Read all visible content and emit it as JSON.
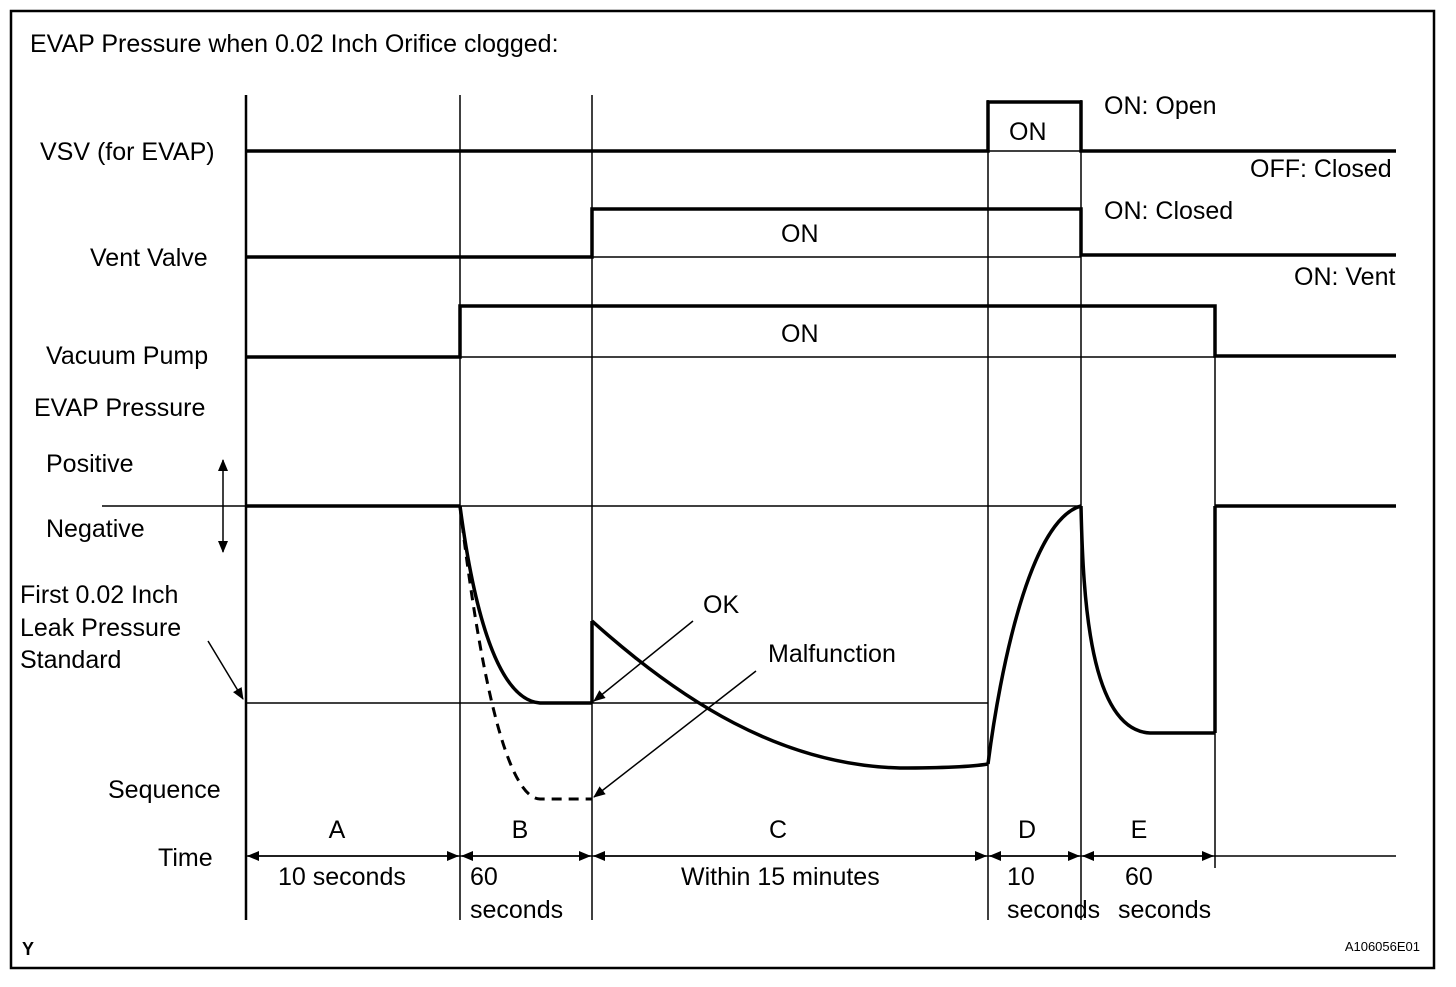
{
  "title": "EVAP Pressure when 0.02 Inch Orifice clogged:",
  "rows": {
    "vsv": "VSV (for EVAP)",
    "vent": "Vent Valve",
    "pump": "Vacuum Pump",
    "evap": "EVAP Pressure",
    "positive": "Positive",
    "negative": "Negative",
    "standard_line1": "First 0.02 Inch",
    "standard_line2": "Leak Pressure",
    "standard_line3": "Standard",
    "sequence": "Sequence",
    "time": "Time"
  },
  "states": {
    "vsv_on": "ON",
    "vsv_open": "ON: Open",
    "vsv_closed": "OFF: Closed",
    "vent_on": "ON",
    "vent_closed": "ON: Closed",
    "vent_vent": "ON: Vent",
    "pump_on": "ON"
  },
  "annotations": {
    "ok": "OK",
    "malfunction": "Malfunction"
  },
  "sequence": [
    {
      "letter": "A",
      "time": "10 seconds"
    },
    {
      "letter": "B",
      "time_line1": "60",
      "time_line2": "seconds"
    },
    {
      "letter": "C",
      "time": "Within 15 minutes"
    },
    {
      "letter": "D",
      "time_line1": "10",
      "time_line2": "seconds"
    },
    {
      "letter": "E",
      "time_line1": "60",
      "time_line2": "seconds"
    }
  ],
  "corner_mark": "Y",
  "figure_id": "A106056E01"
}
